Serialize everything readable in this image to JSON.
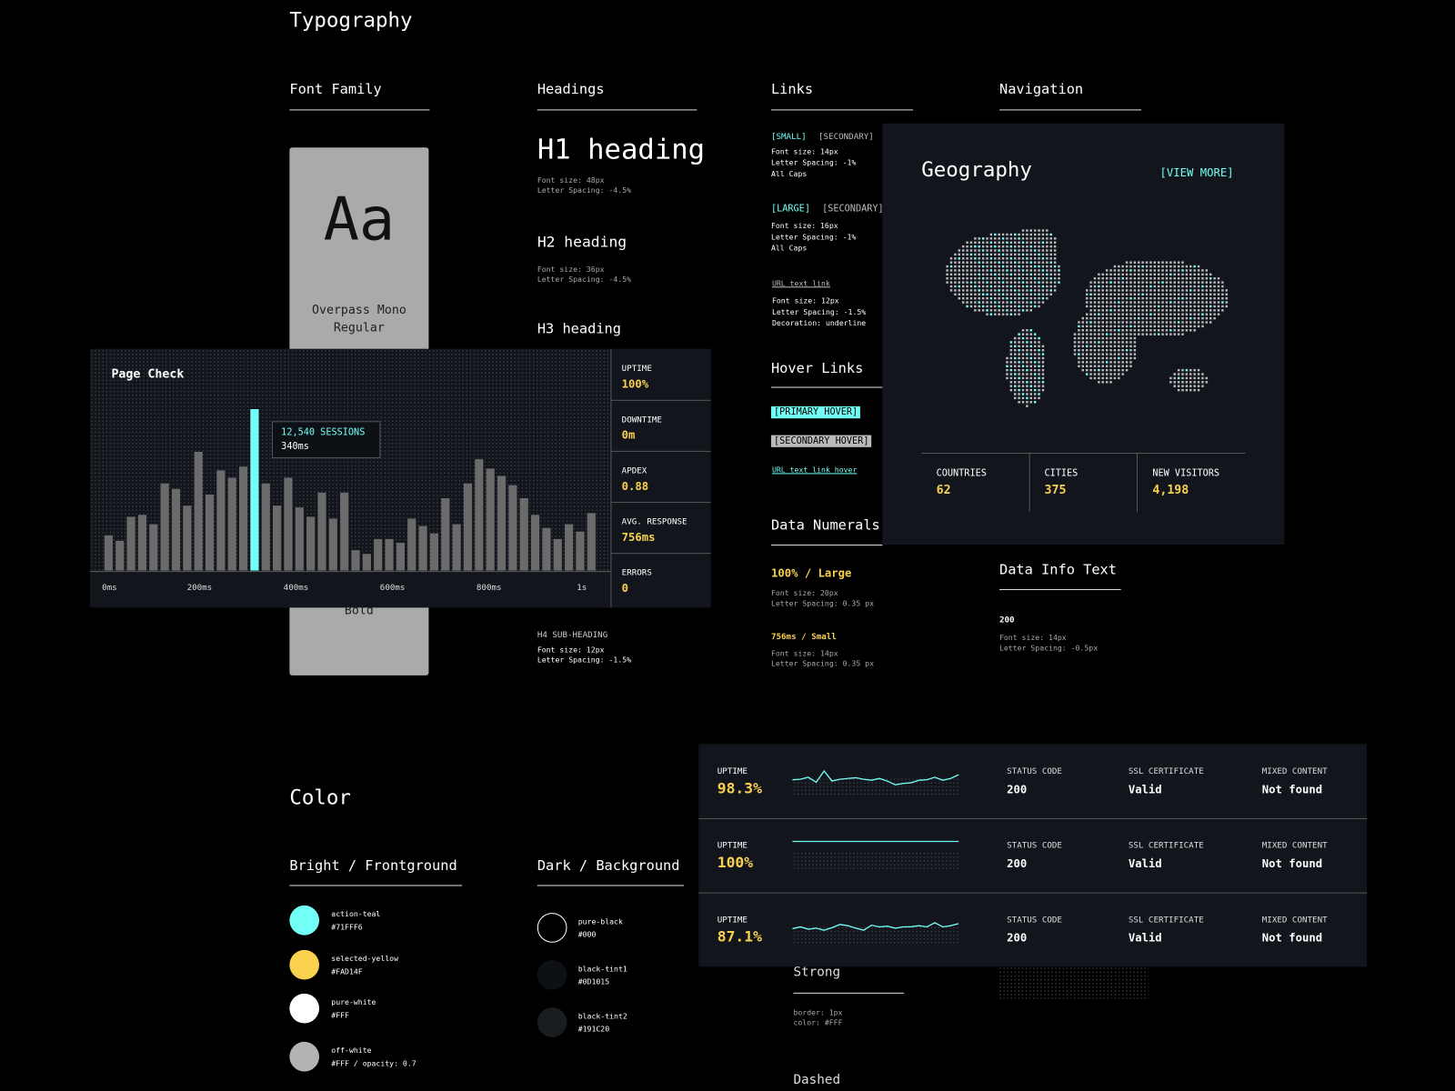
{
  "typography": {
    "title": "Typography",
    "font_family": {
      "heading": "Font Family",
      "sample": "Aa",
      "regular": "Overpass Mono Regular",
      "bold": "Bold"
    },
    "headings": {
      "heading": "Headings",
      "h1": "H1 heading",
      "h1_spec": [
        "Font size: 48px",
        "Letter Spacing: -4.5%"
      ],
      "h2": "H2 heading",
      "h2_spec": [
        "Font size: 36px",
        "Letter Spacing: -4.5%"
      ],
      "h3": "H3 heading",
      "h4": "H4 SUB-HEADING",
      "h4_spec": [
        "Font size: 12px",
        "Letter Spacing: -1.5%"
      ]
    },
    "links": {
      "heading": "Links",
      "small": "[SMALL]",
      "small_secondary": "[SECONDARY]",
      "small_spec": [
        "Font size: 14px",
        "Letter Spacing: -1%",
        "All Caps"
      ],
      "large": "[LARGE]",
      "large_secondary": "[SECONDARY]",
      "large_spec": [
        "Font size: 16px",
        "Letter Spacing: -1%",
        "All Caps"
      ],
      "url": "URL text link",
      "url_spec": [
        "Font size: 12px",
        "Letter Spacing: -1.5%",
        "Decoration: underline"
      ]
    },
    "hover_links": {
      "heading": "Hover Links",
      "primary": "[PRIMARY HOVER]",
      "secondary": "[SECONDARY HOVER]",
      "url": "URL text link hover"
    },
    "data_numerals": {
      "heading": "Data Numerals",
      "large": "100% / Large",
      "large_spec": [
        "Font size: 20px",
        "Letter Spacing: 0.35 px"
      ],
      "small": "756ms / Small",
      "small_spec": [
        "Font size: 14px",
        "Letter Spacing: 0.35 px"
      ]
    },
    "navigation": {
      "heading": "Navigation"
    },
    "data_info": {
      "heading": "Data Info Text",
      "sample": "200",
      "spec": [
        "Font size: 14px",
        "Letter Spacing: -0.5px"
      ]
    }
  },
  "color": {
    "title": "Color",
    "bright": {
      "heading": "Bright / Frontground",
      "swatches": [
        {
          "name": "action-teal",
          "hex": "#71FFF6",
          "fill": "#71FFF6"
        },
        {
          "name": "selected-yellow",
          "hex": "#FAD14F",
          "fill": "#FAD14F"
        },
        {
          "name": "pure-white",
          "hex": "#FFF",
          "fill": "#FFFFFF"
        },
        {
          "name": "off-white",
          "hex": "#FFF / opacity: 0.7",
          "fill": "#B3B3B3"
        }
      ]
    },
    "dark": {
      "heading": "Dark / Background",
      "swatches": [
        {
          "name": "pure-black",
          "hex": "#000",
          "fill": "#000000"
        },
        {
          "name": "black-tint1",
          "hex": "#0D1015",
          "fill": "#0D1015"
        },
        {
          "name": "black-tint2",
          "hex": "#191C20",
          "fill": "#191C20"
        }
      ]
    }
  },
  "borders": {
    "strong": "Strong",
    "strong_spec": [
      "border: 1px",
      "color: #FFF"
    ],
    "dashed": "Dashed"
  },
  "page_check": {
    "title": "Page Check",
    "chart": {
      "type": "bar",
      "color": "#6b6b6b",
      "highlight_color": "#71FFF6",
      "highlight": 13,
      "values": [
        38,
        32,
        58,
        60,
        50,
        94,
        88,
        70,
        128,
        82,
        108,
        100,
        112,
        174,
        94,
        70,
        100,
        68,
        58,
        84,
        56,
        84,
        22,
        18,
        34,
        34,
        30,
        56,
        48,
        40,
        78,
        50,
        94,
        120,
        110,
        102,
        92,
        78,
        60,
        46,
        34,
        50,
        42,
        62
      ],
      "x_labels": [
        "0ms",
        "200ms",
        "400ms",
        "600ms",
        "800ms",
        "1s"
      ],
      "tooltip": {
        "value": "12,540 SESSIONS",
        "time": "340ms"
      }
    },
    "stats": [
      {
        "label": "UPTIME",
        "value": "100%"
      },
      {
        "label": "DOWNTIME",
        "value": "0m"
      },
      {
        "label": "APDEX",
        "value": "0.88"
      },
      {
        "label": "AVG. RESPONSE",
        "value": "756ms"
      },
      {
        "label": "ERRORS",
        "value": "0"
      }
    ]
  },
  "geography": {
    "title": "Geography",
    "link": "[VIEW MORE]",
    "stats": [
      {
        "label": "COUNTRIES",
        "value": "62"
      },
      {
        "label": "CITIES",
        "value": "375"
      },
      {
        "label": "NEW VISITORS",
        "value": "4,198"
      }
    ]
  },
  "monitors": {
    "rows": [
      {
        "uptime_label": "UPTIME",
        "uptime": "98.3%",
        "sparkline": [
          50,
          52,
          60,
          40,
          85,
          45,
          52,
          55,
          58,
          52,
          48,
          55,
          45,
          30,
          35,
          38,
          48,
          50,
          60,
          48,
          55,
          70
        ],
        "status_label": "STATUS CODE",
        "status": "200",
        "ssl_label": "SSL CERTIFICATE",
        "ssl": "Valid",
        "mixed_label": "MIXED CONTENT",
        "mixed": "Not found"
      },
      {
        "uptime_label": "UPTIME",
        "uptime": "100%",
        "sparkline": [
          100,
          100,
          100,
          100,
          100,
          100,
          100,
          100,
          100,
          100,
          100,
          100
        ],
        "status_label": "STATUS CODE",
        "status": "200",
        "ssl_label": "SSL CERTIFICATE",
        "ssl": "Valid",
        "mixed_label": "MIXED CONTENT",
        "mixed": "Not found"
      },
      {
        "uptime_label": "UPTIME",
        "uptime": "87.1%",
        "sparkline": [
          48,
          55,
          46,
          50,
          42,
          52,
          65,
          60,
          50,
          42,
          62,
          55,
          58,
          50,
          55,
          56,
          60,
          55,
          72,
          55,
          60,
          68
        ],
        "status_label": "STATUS CODE",
        "status": "200",
        "ssl_label": "SSL CERTIFICATE",
        "ssl": "Valid",
        "mixed_label": "MIXED CONTENT",
        "mixed": "Not found"
      }
    ]
  }
}
